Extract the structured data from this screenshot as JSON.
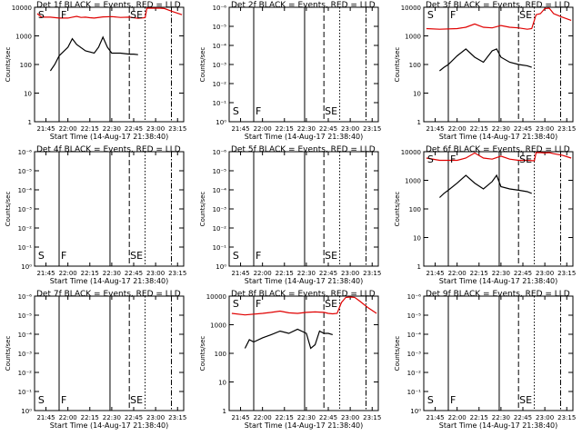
{
  "chart_data": [
    {
      "type": "line",
      "title": "Det 1f BLACK = Events, RED = LLD",
      "xlabel": "Start Time (14-Aug-17 21:38:40)",
      "ylabel": "Counts/sec",
      "x_tick_labels": [
        "21:45",
        "22:00",
        "22:15",
        "22:30",
        "22:45",
        "23:00",
        "23:15"
      ],
      "y_tick_labels": [
        "1",
        "10",
        "100",
        "1000",
        "10000"
      ],
      "ylim": [
        1,
        10000
      ],
      "log_y": true,
      "markers": [
        "S",
        "F",
        "SE"
      ],
      "series": [
        {
          "color": "#e00000",
          "x": [
            21.65,
            21.7,
            21.8,
            21.9,
            22.0,
            22.05,
            22.1,
            22.15,
            22.2,
            22.25,
            22.3,
            22.4,
            22.5,
            22.6,
            22.7,
            22.75,
            22.8,
            22.88,
            22.9,
            22.95,
            23.0,
            23.05,
            23.1,
            23.2,
            23.3
          ],
          "y": [
            6000,
            4500,
            4500,
            4200,
            4200,
            4500,
            4800,
            4400,
            4500,
            4300,
            4200,
            4600,
            4700,
            4400,
            4500,
            4300,
            4100,
            4300,
            10000,
            9500,
            10000,
            10000,
            9000,
            7000,
            5500
          ]
        },
        {
          "color": "#000000",
          "x": [
            21.8,
            21.85,
            21.9,
            22.0,
            22.05,
            22.1,
            22.2,
            22.3,
            22.35,
            22.4,
            22.45,
            22.5,
            22.55,
            22.6,
            22.7,
            22.75,
            22.8
          ],
          "y": [
            60,
            100,
            200,
            400,
            800,
            500,
            300,
            250,
            400,
            900,
            400,
            250,
            250,
            250,
            230,
            230,
            220
          ]
        }
      ]
    },
    {
      "type": "line",
      "title": "Det 2f BLACK = Events, RED = LLD",
      "xlabel": "Start Time (14-Aug-17 21:38:40)",
      "ylabel": "Counts/sec",
      "x_tick_labels": [
        "21:45",
        "22:00",
        "22:15",
        "22:30",
        "22:45",
        "23:00",
        "23:15"
      ],
      "y_tick_labels": [
        "10⁰",
        "10⁻¹",
        "10⁻²",
        "10⁻³",
        "10⁻⁴",
        "10⁻⁵",
        "10⁻⁶"
      ],
      "markers": [
        "S",
        "F",
        "SE"
      ],
      "series": []
    },
    {
      "type": "line",
      "title": "Det 3f BLACK = Events, RED = LLD",
      "xlabel": "Start Time (14-Aug-17 21:38:40)",
      "ylabel": "Counts/sec",
      "x_tick_labels": [
        "21:45",
        "22:00",
        "22:15",
        "22:30",
        "22:45",
        "23:00",
        "23:15"
      ],
      "y_tick_labels": [
        "1",
        "10",
        "100",
        "1000",
        "10000"
      ],
      "ylim": [
        1,
        10000
      ],
      "log_y": true,
      "markers": [
        "S",
        "F",
        "SE"
      ],
      "series": [
        {
          "color": "#e00000",
          "x": [
            21.65,
            21.8,
            22.0,
            22.1,
            22.2,
            22.3,
            22.4,
            22.5,
            22.6,
            22.7,
            22.8,
            22.85,
            22.9,
            22.95,
            23.0,
            23.05,
            23.1,
            23.2,
            23.3
          ],
          "y": [
            1800,
            1700,
            1800,
            2000,
            2600,
            2000,
            1900,
            2300,
            2000,
            1900,
            1700,
            1800,
            5500,
            6000,
            9000,
            9500,
            6000,
            4500,
            3500
          ]
        },
        {
          "color": "#000000",
          "x": [
            21.8,
            21.85,
            21.9,
            22.0,
            22.1,
            22.2,
            22.3,
            22.4,
            22.45,
            22.5,
            22.6,
            22.7,
            22.8,
            22.85
          ],
          "y": [
            60,
            80,
            100,
            200,
            350,
            180,
            120,
            300,
            350,
            180,
            120,
            100,
            90,
            80
          ]
        }
      ]
    },
    {
      "type": "line",
      "title": "Det 4f BLACK = Events, RED = LLD",
      "xlabel": "Start Time (14-Aug-17 21:38:40)",
      "ylabel": "Counts/sec",
      "x_tick_labels": [
        "21:45",
        "22:00",
        "22:15",
        "22:30",
        "22:45",
        "23:00",
        "23:15"
      ],
      "y_tick_labels": [
        "10⁰",
        "10⁻¹",
        "10⁻²",
        "10⁻³",
        "10⁻⁴",
        "10⁻⁵",
        "10⁻⁶"
      ],
      "markers": [
        "S",
        "F",
        "SE"
      ],
      "series": []
    },
    {
      "type": "line",
      "title": "Det 5f BLACK = Events, RED = LLD",
      "xlabel": "Start Time (14-Aug-17 21:38:40)",
      "ylabel": "Counts/sec",
      "x_tick_labels": [
        "21:45",
        "22:00",
        "22:15",
        "22:30",
        "22:45",
        "23:00",
        "23:15"
      ],
      "y_tick_labels": [
        "10⁰",
        "10⁻¹",
        "10⁻²",
        "10⁻³",
        "10⁻⁴",
        "10⁻⁵",
        "10⁻⁶"
      ],
      "markers": [
        "S",
        "F",
        "SE"
      ],
      "series": []
    },
    {
      "type": "line",
      "title": "Det 6f BLACK = Events, RED = LLD",
      "xlabel": "Start Time (14-Aug-17 21:38:40)",
      "ylabel": "Counts/sec",
      "x_tick_labels": [
        "21:45",
        "22:00",
        "22:15",
        "22:30",
        "22:45",
        "23:00",
        "23:15"
      ],
      "y_tick_labels": [
        "1",
        "10",
        "100",
        "1000",
        "10000"
      ],
      "ylim": [
        1,
        10000
      ],
      "log_y": true,
      "markers": [
        "S",
        "F",
        "SE"
      ],
      "series": [
        {
          "color": "#e00000",
          "x": [
            21.65,
            21.8,
            22.0,
            22.1,
            22.2,
            22.3,
            22.4,
            22.5,
            22.6,
            22.7,
            22.8,
            22.88,
            22.9,
            22.95,
            23.0,
            23.05,
            23.1,
            23.2,
            23.3
          ],
          "y": [
            6000,
            5000,
            5000,
            6000,
            9000,
            6000,
            5500,
            7000,
            5500,
            5000,
            5000,
            4800,
            10000,
            10000,
            9000,
            10000,
            8500,
            7500,
            6000
          ]
        },
        {
          "color": "#000000",
          "x": [
            21.8,
            21.85,
            21.9,
            22.0,
            22.1,
            22.2,
            22.3,
            22.4,
            22.45,
            22.5,
            22.6,
            22.7,
            22.8,
            22.85
          ],
          "y": [
            250,
            350,
            450,
            800,
            1500,
            800,
            500,
            900,
            1500,
            600,
            500,
            450,
            400,
            350
          ]
        }
      ]
    },
    {
      "type": "line",
      "title": "Det 7f BLACK = Events, RED = LLD",
      "xlabel": "Start Time (14-Aug-17 21:38:40)",
      "ylabel": "Counts/sec",
      "x_tick_labels": [
        "21:45",
        "22:00",
        "22:15",
        "22:30",
        "22:45",
        "23:00",
        "23:15"
      ],
      "y_tick_labels": [
        "10⁰",
        "10⁻¹",
        "10⁻²",
        "10⁻³",
        "10⁻⁴",
        "10⁻⁵",
        "10⁻⁶"
      ],
      "markers": [
        "S",
        "F",
        "SE"
      ],
      "series": []
    },
    {
      "type": "line",
      "title": "Det 8f BLACK = Events, RED = LLD",
      "xlabel": "Start Time (14-Aug-17 21:38:40)",
      "ylabel": "Counts/sec",
      "x_tick_labels": [
        "21:45",
        "22:00",
        "22:15",
        "22:30",
        "22:45",
        "23:00",
        "23:15"
      ],
      "y_tick_labels": [
        "1",
        "10",
        "100",
        "1000",
        "10000"
      ],
      "ylim": [
        1,
        10000
      ],
      "log_y": true,
      "markers": [
        "S",
        "F",
        "SE"
      ],
      "series": [
        {
          "color": "#e00000",
          "x": [
            21.65,
            21.8,
            22.0,
            22.1,
            22.2,
            22.3,
            22.4,
            22.5,
            22.6,
            22.7,
            22.75,
            22.8,
            22.85,
            22.9,
            22.95,
            23.0,
            23.05,
            23.1,
            23.2,
            23.3
          ],
          "y": [
            2500,
            2200,
            2500,
            2700,
            3000,
            2600,
            2500,
            2700,
            2800,
            2700,
            2500,
            2400,
            2500,
            6000,
            9000,
            10000,
            9000,
            7000,
            4000,
            2500
          ]
        },
        {
          "color": "#000000",
          "x": [
            21.8,
            21.85,
            21.9,
            22.0,
            22.1,
            22.2,
            22.3,
            22.4,
            22.5,
            22.55,
            22.6,
            22.65,
            22.7,
            22.75,
            22.8
          ],
          "y": [
            150,
            300,
            250,
            350,
            450,
            600,
            500,
            700,
            500,
            150,
            200,
            600,
            500,
            500,
            450
          ]
        }
      ]
    },
    {
      "type": "line",
      "title": "Det 9f BLACK = Events, RED = LLD",
      "xlabel": "Start Time (14-Aug-17 21:38:40)",
      "ylabel": "Counts/sec",
      "x_tick_labels": [
        "21:45",
        "22:00",
        "22:15",
        "22:30",
        "22:45",
        "23:00",
        "23:15"
      ],
      "y_tick_labels": [
        "10⁰",
        "10⁻¹",
        "10⁻²",
        "10⁻³",
        "10⁻⁴",
        "10⁻⁵",
        "10⁻⁶"
      ],
      "markers": [
        "S",
        "F",
        "SE"
      ],
      "series": []
    }
  ]
}
